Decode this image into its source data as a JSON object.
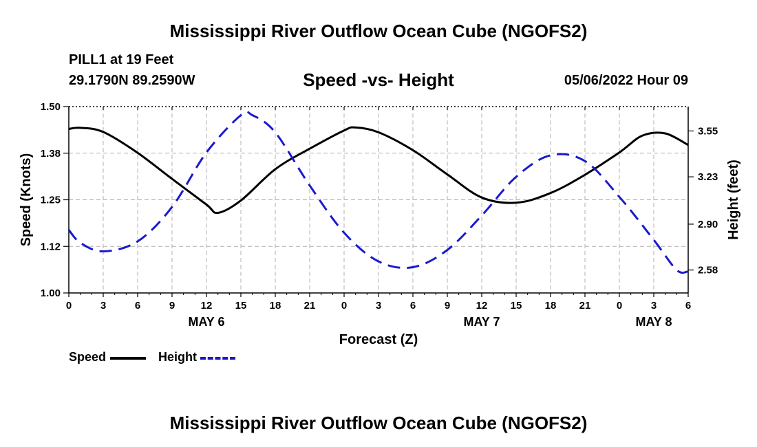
{
  "page": {
    "title": "Mississippi River Outflow Ocean Cube (NGOFS2)",
    "footer_title": "Mississippi River Outflow Ocean Cube (NGOFS2)",
    "station": "PILL1 at 19 Feet",
    "coords": "29.1790N  89.2590W",
    "date": "05/06/2022 Hour 09"
  },
  "chart_data": {
    "type": "line",
    "title": "Speed -vs- Height",
    "xlabel": "Forecast (Z)",
    "ylabel": "Speed (Knots)",
    "y2label": "Height (feet)",
    "x_hours_range": [
      0,
      54
    ],
    "x_ticks_hours": [
      0,
      3,
      6,
      9,
      12,
      15,
      18,
      21,
      24,
      27,
      30,
      33,
      36,
      39,
      42,
      45,
      48,
      51,
      54
    ],
    "x_tick_labels": [
      "0",
      "3",
      "6",
      "9",
      "12",
      "15",
      "18",
      "21",
      "0",
      "3",
      "6",
      "9",
      "12",
      "15",
      "18",
      "21",
      "0",
      "3",
      "6"
    ],
    "day_labels": [
      {
        "hour": 12,
        "label": "MAY 6"
      },
      {
        "hour": 36,
        "label": "MAY 7"
      },
      {
        "hour": 51,
        "label": "MAY 8"
      }
    ],
    "ylim": [
      1.0,
      1.5
    ],
    "y_ticks": [
      1.0,
      1.125,
      1.25,
      1.375,
      1.5
    ],
    "y_tick_labels": [
      "1.00",
      "1.12",
      "1.25",
      "1.38",
      "1.50"
    ],
    "y2lim": [
      2.42,
      3.72
    ],
    "y2_ticks": [
      2.58,
      2.9,
      3.23,
      3.55
    ],
    "y2_tick_labels": [
      "2.58",
      "2.90",
      "3.23",
      "3.55"
    ],
    "grid": true,
    "legend": "bottom-left",
    "series": [
      {
        "name": "Speed",
        "color": "#000000",
        "dash": "solid",
        "axis": "left",
        "x": [
          0,
          1,
          3,
          6,
          9,
          12,
          13,
          15,
          18,
          21,
          24,
          25,
          27,
          30,
          33,
          36,
          39,
          42,
          45,
          48,
          50,
          52,
          54
        ],
        "values": [
          1.44,
          1.443,
          1.432,
          1.376,
          1.306,
          1.237,
          1.215,
          1.248,
          1.332,
          1.387,
          1.436,
          1.444,
          1.431,
          1.383,
          1.318,
          1.256,
          1.242,
          1.268,
          1.317,
          1.377,
          1.422,
          1.428,
          1.397
        ]
      },
      {
        "name": "Height",
        "color": "#1a1acc",
        "dash": "dashed",
        "axis": "right",
        "x": [
          0,
          1,
          3,
          6,
          9,
          12,
          15,
          16,
          18,
          21,
          24,
          27,
          30,
          33,
          36,
          39,
          42,
          45,
          48,
          51,
          53,
          54
        ],
        "values": [
          2.86,
          2.77,
          2.71,
          2.78,
          3.02,
          3.4,
          3.66,
          3.66,
          3.54,
          3.17,
          2.84,
          2.64,
          2.6,
          2.72,
          2.96,
          3.23,
          3.38,
          3.34,
          3.09,
          2.79,
          2.58,
          2.57
        ]
      }
    ]
  }
}
